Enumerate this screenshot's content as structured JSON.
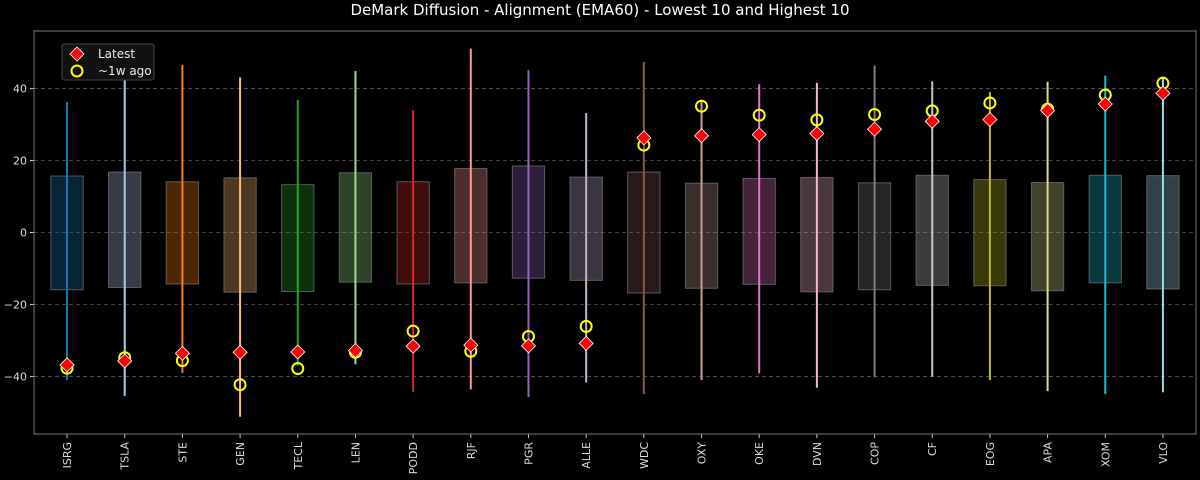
{
  "chart_data": {
    "type": "range-box-scatter",
    "title": "DeMark Diffusion - Alignment (EMA60) - Lowest 10 and Highest 10",
    "xlabel": "",
    "ylabel": "",
    "ylim": [
      -56,
      56
    ],
    "yticks": [
      -40,
      -20,
      0,
      20,
      40
    ],
    "grid": "horizontal dashed",
    "legend_position": "top-left",
    "categories": [
      "ISRG",
      "TSLA",
      "STE",
      "GEN",
      "TECL",
      "LEN",
      "PODD",
      "RJF",
      "PGR",
      "ALLE",
      "WDC",
      "OXY",
      "OKE",
      "DVN",
      "COP",
      "CF",
      "EOG",
      "APA",
      "XOM",
      "VLO"
    ],
    "colors": [
      "#1f77b4",
      "#aec7e8",
      "#ff7f0e",
      "#ffbb78",
      "#2ca02c",
      "#98df8a",
      "#d62728",
      "#ff9896",
      "#9467bd",
      "#c5b0d5",
      "#8c564b",
      "#c49c94",
      "#e377c2",
      "#f7b6d2",
      "#7f7f7f",
      "#c7c7c7",
      "#bcbd22",
      "#dbdb8d",
      "#17becf",
      "#9edae5"
    ],
    "range_min": [
      -41,
      -45.4,
      -39,
      -51.2,
      -37,
      -36.6,
      -44.3,
      -43.6,
      -45.7,
      -41.7,
      -44.9,
      -41,
      -39.1,
      -43.1,
      -40.2,
      -40.1,
      -41,
      -44.1,
      -44.9,
      -44.4
    ],
    "range_max": [
      36.3,
      42.7,
      46.6,
      43.1,
      36.8,
      44.9,
      34,
      51.1,
      45.1,
      33.2,
      47.4,
      36.9,
      41.2,
      41.6,
      46.4,
      42,
      39,
      41.9,
      43.6,
      43.3
    ],
    "box_low": [
      -15.9,
      -15.3,
      -14.3,
      -16.6,
      -16.4,
      -13.8,
      -14.3,
      -14,
      -12.7,
      -13.3,
      -16.8,
      -15.5,
      -14.4,
      -16.5,
      -15.9,
      -14.7,
      -14.8,
      -16.2,
      -14,
      -15.7
    ],
    "box_high": [
      15.7,
      16.8,
      14.1,
      15.2,
      13.3,
      16.6,
      14.1,
      17.8,
      18.5,
      15.4,
      16.8,
      13.7,
      15,
      15.3,
      13.8,
      15.9,
      14.7,
      13.9,
      15.9,
      15.8
    ],
    "series": [
      {
        "name": "Latest",
        "marker": "diamond",
        "color": "#ff0000",
        "values": [
          -36.8,
          -35.7,
          -33.6,
          -33.3,
          -33.2,
          -32.8,
          -31.6,
          -31.3,
          -31.5,
          -30.8,
          26.3,
          26.9,
          27.2,
          27.5,
          28.7,
          30.9,
          31.4,
          33.9,
          35.7,
          38.7
        ]
      },
      {
        "name": "~1w ago",
        "marker": "circle",
        "color": "#ffff00",
        "values": [
          -37.7,
          -34.8,
          -35.6,
          -42.3,
          -37.8,
          -33.3,
          -27.4,
          -33,
          -28.9,
          -26.1,
          24.3,
          35.1,
          32.6,
          31.3,
          32.8,
          33.8,
          36,
          34.3,
          38.2,
          41.5
        ]
      }
    ]
  }
}
